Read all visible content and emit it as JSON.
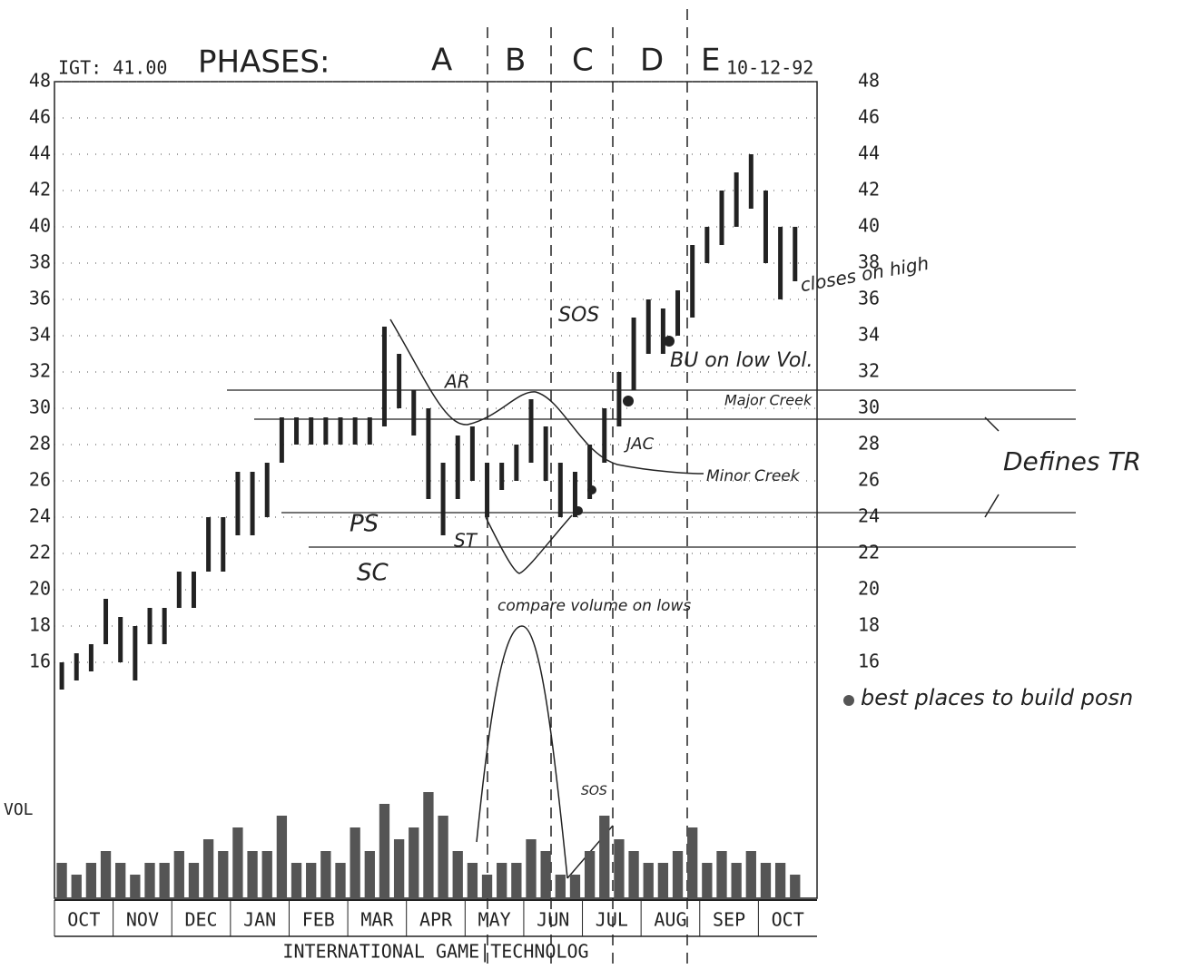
{
  "chart_data": {
    "type": "hilo",
    "title": "IGT: 41.00",
    "date": "10-12-92",
    "subtitle": "INTERNATIONAL GAME|TECHNOLOG",
    "volume_label": "VOL",
    "categories": [
      "OCT",
      null,
      null,
      null,
      "NOV",
      null,
      null,
      null,
      "DEC",
      null,
      null,
      null,
      "JAN",
      null,
      null,
      null,
      "FEB",
      null,
      null,
      null,
      "MAR",
      null,
      null,
      null,
      "APR",
      null,
      null,
      null,
      "MAY",
      null,
      null,
      null,
      "JUN",
      null,
      null,
      null,
      "JUL",
      null,
      null,
      null,
      "AUG",
      null,
      null,
      null,
      "SEP",
      null,
      null,
      null,
      "OCT",
      null,
      null,
      null
    ],
    "high": [
      16,
      16.5,
      17,
      19.5,
      18.5,
      18,
      19,
      19,
      21,
      21,
      24,
      24,
      26.5,
      26.5,
      27,
      29.5,
      29.5,
      29.5,
      29.5,
      29.5,
      29.5,
      29.5,
      34.5,
      33,
      31,
      30,
      27,
      28.5,
      29,
      27,
      27,
      28,
      30.5,
      29,
      27,
      26.5,
      28,
      30,
      32,
      35,
      36,
      35.5,
      36.5,
      39,
      40,
      42,
      43,
      44,
      42,
      40,
      40,
      null
    ],
    "low": [
      14.5,
      15,
      15.5,
      17,
      16,
      15,
      17,
      17,
      19,
      19,
      21,
      21,
      23,
      23,
      24,
      27,
      28,
      28,
      28,
      28,
      28,
      28,
      29,
      30,
      28.5,
      25,
      23,
      25,
      26,
      24,
      25.5,
      26,
      27,
      26,
      24,
      24,
      25,
      27,
      29,
      31,
      33,
      33,
      34,
      35,
      38,
      39,
      40,
      41,
      38,
      36,
      37,
      null
    ],
    "volume": [
      3,
      2,
      3,
      4,
      3,
      2,
      3,
      3,
      4,
      3,
      5,
      4,
      6,
      4,
      4,
      7,
      3,
      3,
      4,
      3,
      6,
      4,
      8,
      5,
      6,
      9,
      7,
      4,
      3,
      2,
      3,
      3,
      5,
      4,
      2,
      2,
      4,
      7,
      5,
      4,
      3,
      3,
      4,
      6,
      3,
      4,
      3,
      4,
      3,
      3,
      2,
      null
    ],
    "vlim": [
      0,
      10
    ],
    "ylim": [
      16,
      48
    ],
    "yticks": [
      16,
      18,
      20,
      22,
      24,
      26,
      28,
      30,
      32,
      34,
      36,
      38,
      40,
      42,
      44,
      46,
      48
    ],
    "levels": [
      31,
      29.4,
      24.25,
      22.35
    ],
    "grid": true,
    "color": "#222222",
    "annotations": [
      "PHASES:",
      "A",
      "B",
      "C",
      "D",
      "E",
      "AR",
      "PS",
      "SC",
      "ST",
      "SOS",
      "BU on low Vol.",
      "JAC",
      "Major Creek",
      "Minor Creek",
      "Defines TR",
      "closes on high",
      "compare volume on lows",
      "SOS",
      "best places to build posn"
    ]
  }
}
